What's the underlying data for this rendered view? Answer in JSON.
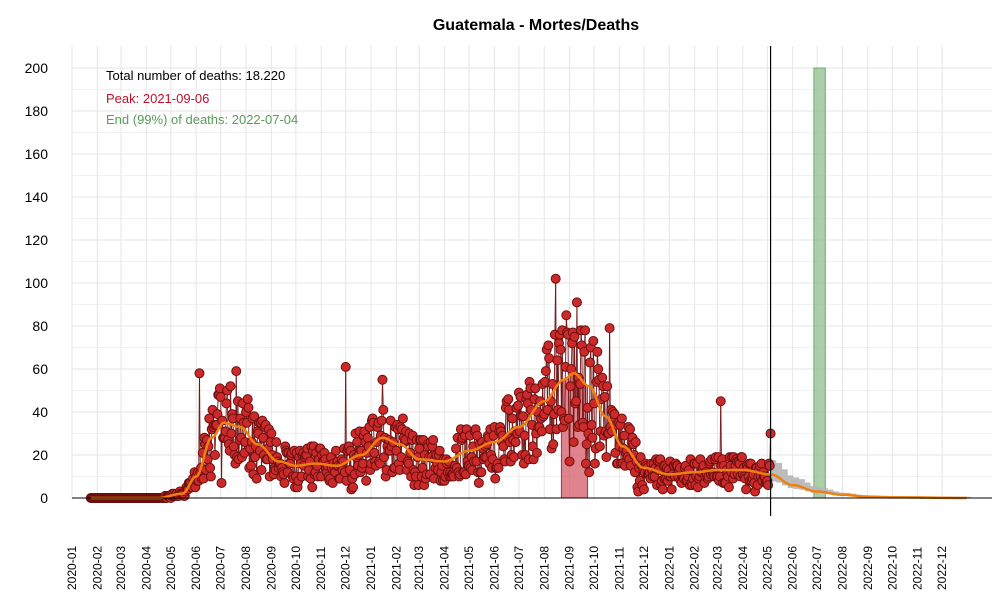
{
  "chart_data": {
    "type": "scatter",
    "title": "Guatemala - Mortes/Deaths",
    "xlabel": "",
    "ylabel": "",
    "x_range": [
      "2020-01-01",
      "2023-01-31"
    ],
    "ylim": [
      0,
      200
    ],
    "y_ticks": [
      0,
      20,
      40,
      60,
      80,
      100,
      120,
      140,
      160,
      180,
      200
    ],
    "x_ticks": [
      "2020-01",
      "2020-02",
      "2020-03",
      "2020-04",
      "2020-05",
      "2020-06",
      "2020-07",
      "2020-08",
      "2020-09",
      "2020-10",
      "2020-11",
      "2020-12",
      "2021-01",
      "2021-02",
      "2021-03",
      "2021-04",
      "2021-05",
      "2021-06",
      "2021-07",
      "2021-08",
      "2021-09",
      "2021-10",
      "2021-11",
      "2021-12",
      "2022-01",
      "2022-02",
      "2022-03",
      "2022-04",
      "2022-05",
      "2022-06",
      "2022-07",
      "2022-08",
      "2022-09",
      "2022-10",
      "2022-11",
      "2022-12"
    ],
    "grid": true,
    "annotations": {
      "total": "Total number of deaths: 18.220",
      "peak": "Peak: 2021-09-06",
      "end": "End (99%) of deaths: 2022-07-04"
    },
    "current_date": "2022-05-05",
    "end_band": [
      "2022-06-27",
      "2022-07-11"
    ],
    "peak_band": {
      "start": "2021-08-22",
      "end": "2021-09-23",
      "value": 58
    },
    "colors": {
      "points": "#cc2a2a",
      "point_edge": "#6b0f0f",
      "smooth": "#f07f0f",
      "peak_band": "#d45b66",
      "end_band": "#8fbf8f",
      "forecast": "#b5b5b5",
      "peak_text": "#c0102a",
      "end_text": "#5a9a5a"
    },
    "daily_deaths_smooth": [
      {
        "date": "2020-01-24",
        "value": 0
      },
      {
        "date": "2020-04-15",
        "value": 0
      },
      {
        "date": "2020-05-15",
        "value": 2
      },
      {
        "date": "2020-06-01",
        "value": 10
      },
      {
        "date": "2020-06-20",
        "value": 28
      },
      {
        "date": "2020-07-05",
        "value": 35
      },
      {
        "date": "2020-07-25",
        "value": 33
      },
      {
        "date": "2020-08-15",
        "value": 25
      },
      {
        "date": "2020-09-10",
        "value": 17
      },
      {
        "date": "2020-10-01",
        "value": 15
      },
      {
        "date": "2020-10-25",
        "value": 16
      },
      {
        "date": "2020-11-20",
        "value": 15
      },
      {
        "date": "2020-12-20",
        "value": 20
      },
      {
        "date": "2021-01-15",
        "value": 28
      },
      {
        "date": "2021-02-05",
        "value": 25
      },
      {
        "date": "2021-03-01",
        "value": 18
      },
      {
        "date": "2021-04-01",
        "value": 17
      },
      {
        "date": "2021-05-01",
        "value": 22
      },
      {
        "date": "2021-06-01",
        "value": 26
      },
      {
        "date": "2021-07-01",
        "value": 33
      },
      {
        "date": "2021-08-01",
        "value": 45
      },
      {
        "date": "2021-08-25",
        "value": 55
      },
      {
        "date": "2021-09-06",
        "value": 58
      },
      {
        "date": "2021-09-25",
        "value": 52
      },
      {
        "date": "2021-10-15",
        "value": 38
      },
      {
        "date": "2021-11-05",
        "value": 24
      },
      {
        "date": "2021-12-01",
        "value": 14
      },
      {
        "date": "2022-01-01",
        "value": 11
      },
      {
        "date": "2022-02-01",
        "value": 12
      },
      {
        "date": "2022-03-01",
        "value": 13
      },
      {
        "date": "2022-04-01",
        "value": 13
      },
      {
        "date": "2022-05-05",
        "value": 11
      },
      {
        "date": "2022-06-01",
        "value": 6
      },
      {
        "date": "2022-07-01",
        "value": 3
      },
      {
        "date": "2022-08-01",
        "value": 1.5
      },
      {
        "date": "2022-09-01",
        "value": 0.6
      },
      {
        "date": "2022-10-01",
        "value": 0.3
      },
      {
        "date": "2022-12-31",
        "value": 0
      }
    ],
    "daily_deaths_observed_notable": [
      {
        "date": "2020-06-05",
        "value": 58
      },
      {
        "date": "2020-07-20",
        "value": 59
      },
      {
        "date": "2020-12-01",
        "value": 61
      },
      {
        "date": "2021-01-15",
        "value": 55
      },
      {
        "date": "2021-08-15",
        "value": 102
      },
      {
        "date": "2021-09-10",
        "value": 91
      },
      {
        "date": "2021-10-20",
        "value": 79
      },
      {
        "date": "2022-03-05",
        "value": 45
      },
      {
        "date": "2022-05-05",
        "value": 30
      }
    ]
  }
}
